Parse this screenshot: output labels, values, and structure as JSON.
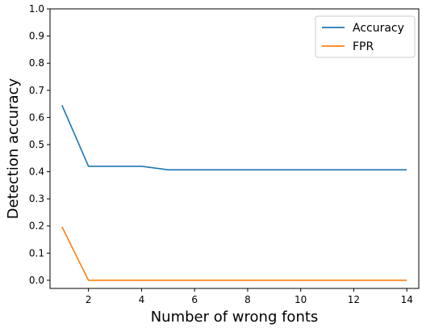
{
  "chart_data": {
    "type": "line",
    "title": "",
    "xlabel": "Number of wrong fonts",
    "ylabel": "Detection accuracy",
    "xlim": [
      0.55,
      14.45
    ],
    "ylim": [
      -0.03,
      1.0
    ],
    "x_ticks": [
      2,
      4,
      6,
      8,
      10,
      12,
      14
    ],
    "y_ticks": [
      0.0,
      0.1,
      0.2,
      0.3,
      0.4,
      0.5,
      0.6,
      0.7,
      0.8,
      0.9,
      1.0
    ],
    "x_tick_labels": [
      "2",
      "4",
      "6",
      "8",
      "10",
      "12",
      "14"
    ],
    "y_tick_labels": [
      "0.0",
      "0.1",
      "0.2",
      "0.3",
      "0.4",
      "0.5",
      "0.6",
      "0.7",
      "0.8",
      "0.9",
      "1.0"
    ],
    "grid": false,
    "legend_position": "top-right",
    "x": [
      1,
      2,
      3,
      4,
      5,
      6,
      7,
      8,
      9,
      10,
      11,
      12,
      13,
      14
    ],
    "series": [
      {
        "name": "Accuracy",
        "color": "#1f77b4",
        "values": [
          0.645,
          0.42,
          0.42,
          0.42,
          0.407,
          0.407,
          0.407,
          0.407,
          0.407,
          0.407,
          0.407,
          0.407,
          0.407,
          0.407
        ]
      },
      {
        "name": "FPR",
        "color": "#ff7f0e",
        "values": [
          0.197,
          0.0,
          0.0,
          0.0,
          0.0,
          0.0,
          0.0,
          0.0,
          0.0,
          0.0,
          0.0,
          0.0,
          0.0,
          0.0
        ]
      }
    ]
  }
}
